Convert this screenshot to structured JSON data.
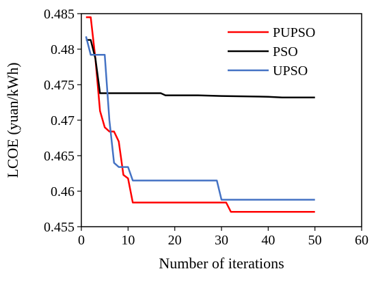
{
  "chart_data": {
    "type": "line",
    "xlabel": "Number of iterations",
    "ylabel": "LCOE (yuan/kWh)",
    "xlim": [
      0,
      60
    ],
    "ylim": [
      0.455,
      0.485
    ],
    "xticks": [
      0,
      10,
      20,
      30,
      40,
      50,
      60
    ],
    "yticks": [
      0.455,
      0.46,
      0.465,
      0.47,
      0.475,
      0.48,
      0.485
    ],
    "xtick_labels": [
      "0",
      "10",
      "20",
      "30",
      "40",
      "50",
      "60"
    ],
    "ytick_labels": [
      "0.455",
      "0.46",
      "0.465",
      "0.47",
      "0.475",
      "0.48",
      "0.485"
    ],
    "grid": false,
    "legend_position": "top-right",
    "series": [
      {
        "name": "PUPSO",
        "color": "#ff0000",
        "x": [
          1,
          2,
          3,
          4,
          5,
          6,
          7,
          8,
          9,
          10,
          11,
          12,
          20,
          30,
          31,
          32,
          40,
          50
        ],
        "y": [
          0.4845,
          0.4845,
          0.4787,
          0.4713,
          0.469,
          0.4684,
          0.4684,
          0.467,
          0.4623,
          0.4618,
          0.4584,
          0.4584,
          0.4584,
          0.4584,
          0.4584,
          0.4571,
          0.4571,
          0.4571
        ]
      },
      {
        "name": "PSO",
        "color": "#000000",
        "x": [
          1,
          2,
          3,
          4,
          5,
          10,
          17,
          18,
          25,
          30,
          40,
          43,
          50
        ],
        "y": [
          0.4813,
          0.4813,
          0.4787,
          0.4738,
          0.4738,
          0.4738,
          0.4738,
          0.4735,
          0.4735,
          0.4734,
          0.4733,
          0.4732,
          0.4732
        ]
      },
      {
        "name": "UPSO",
        "color": "#4472c4",
        "x": [
          1,
          2,
          3,
          4,
          5,
          6,
          7,
          8,
          9,
          10,
          11,
          20,
          29,
          30,
          40,
          50
        ],
        "y": [
          0.4818,
          0.4792,
          0.4792,
          0.4792,
          0.4792,
          0.47,
          0.464,
          0.4634,
          0.4634,
          0.4634,
          0.4615,
          0.4615,
          0.4615,
          0.4588,
          0.4588,
          0.4588
        ]
      }
    ]
  }
}
